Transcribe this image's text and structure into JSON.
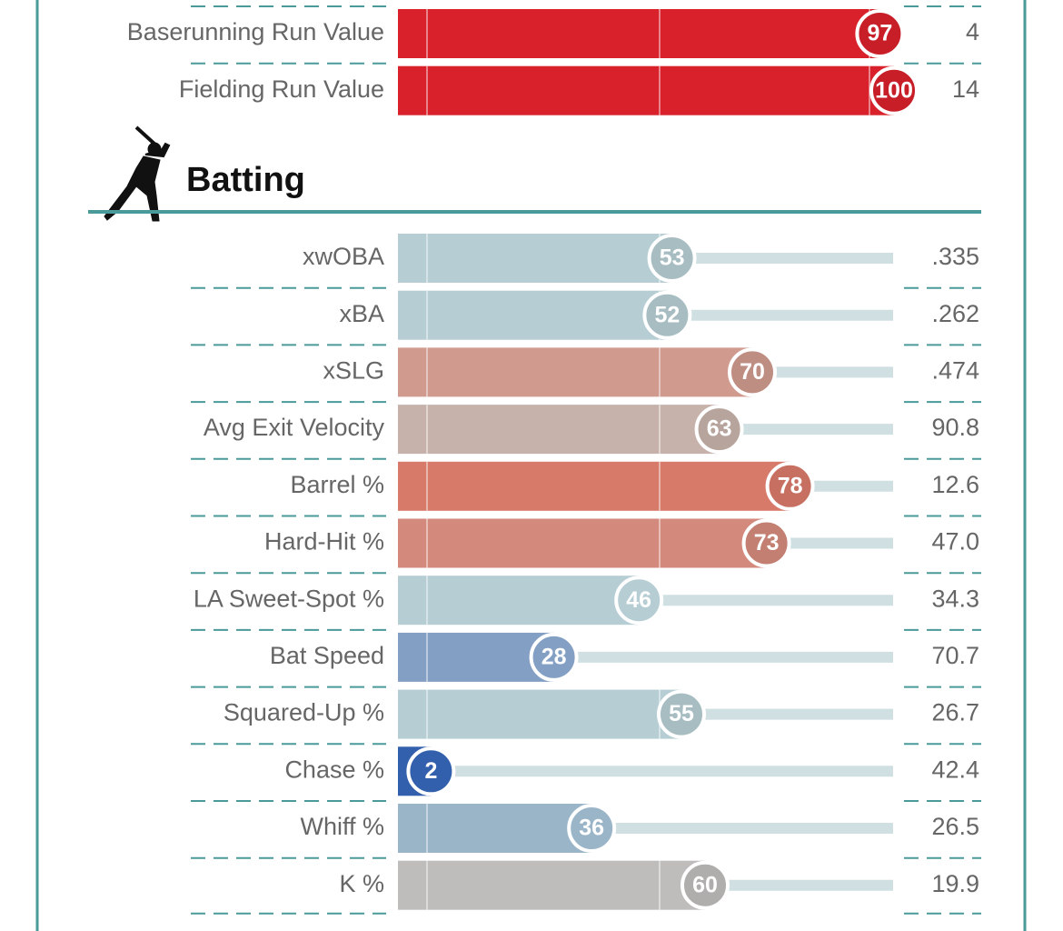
{
  "chart_data": {
    "type": "bar",
    "xlim": [
      0,
      100
    ],
    "sections": [
      {
        "rows": [
          {
            "label": "Baserunning Run Value",
            "percentile": 97,
            "value": 4,
            "color": "#d8212b"
          },
          {
            "label": "Fielding Run Value",
            "percentile": 100,
            "value": 14,
            "color": "#d8212b"
          }
        ]
      },
      {
        "title": "Batting",
        "rows": [
          {
            "label": "xwOBA",
            "percentile": 53,
            "value": 0.335,
            "value_label": ".335",
            "color": "#b5cdd3"
          },
          {
            "label": "xBA",
            "percentile": 52,
            "value": 0.262,
            "value_label": ".262",
            "color": "#b5cdd3"
          },
          {
            "label": "xSLG",
            "percentile": 70,
            "value": 0.474,
            "value_label": ".474",
            "color": "#d09a8e"
          },
          {
            "label": "Avg Exit Velocity",
            "percentile": 63,
            "value": 90.8,
            "color": "#c7b2ab"
          },
          {
            "label": "Barrel %",
            "percentile": 78,
            "value": 12.6,
            "color": "#d87a6a"
          },
          {
            "label": "Hard-Hit %",
            "percentile": 73,
            "value": 47,
            "value_label": "47.0",
            "color": "#d38a7c"
          },
          {
            "label": "LA Sweet-Spot %",
            "percentile": 46,
            "value": 34.3,
            "color": "#b5cdd3"
          },
          {
            "label": "Bat Speed",
            "percentile": 28,
            "value": 70.7,
            "color": "#839fc4"
          },
          {
            "label": "Squared-Up %",
            "percentile": 55,
            "value": 26.7,
            "color": "#b5cdd3"
          },
          {
            "label": "Chase %",
            "percentile": 2,
            "value": 42.4,
            "color": "#3360ad"
          },
          {
            "label": "Whiff %",
            "percentile": 36,
            "value": 26.5,
            "color": "#9bb5c8"
          },
          {
            "label": "K %",
            "percentile": 60,
            "value": 19.9,
            "color": "#bfbdbb"
          }
        ]
      }
    ]
  }
}
